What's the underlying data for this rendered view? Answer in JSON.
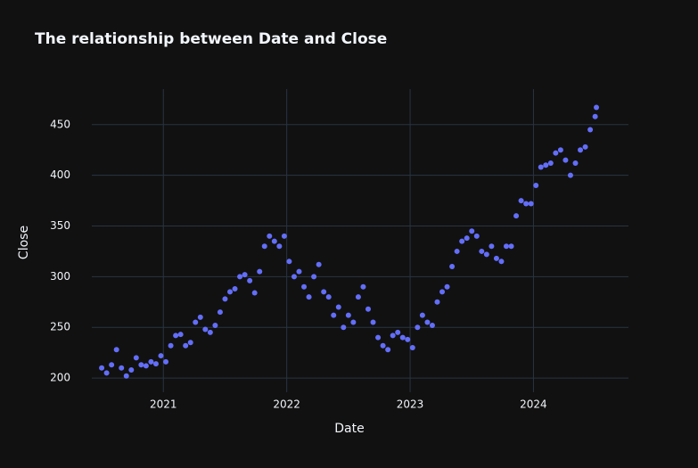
{
  "chart_data": {
    "type": "scatter",
    "title": "The relationship between Date and Close",
    "x_label": "Date",
    "y_label": "Close",
    "x": [
      2020.5,
      2020.54,
      2020.58,
      2020.62,
      2020.66,
      2020.7,
      2020.74,
      2020.78,
      2020.82,
      2020.86,
      2020.9,
      2020.94,
      2020.98,
      2021.02,
      2021.06,
      2021.1,
      2021.14,
      2021.18,
      2021.22,
      2021.26,
      2021.3,
      2021.34,
      2021.38,
      2021.42,
      2021.46,
      2021.5,
      2021.54,
      2021.58,
      2021.62,
      2021.66,
      2021.7,
      2021.74,
      2021.78,
      2021.82,
      2021.86,
      2021.9,
      2021.94,
      2021.98,
      2022.02,
      2022.06,
      2022.1,
      2022.14,
      2022.18,
      2022.22,
      2022.26,
      2022.3,
      2022.34,
      2022.38,
      2022.42,
      2022.46,
      2022.5,
      2022.54,
      2022.58,
      2022.62,
      2022.66,
      2022.7,
      2022.74,
      2022.78,
      2022.82,
      2022.86,
      2022.9,
      2022.94,
      2022.98,
      2023.02,
      2023.06,
      2023.1,
      2023.14,
      2023.18,
      2023.22,
      2023.26,
      2023.3,
      2023.34,
      2023.38,
      2023.42,
      2023.46,
      2023.5,
      2023.54,
      2023.58,
      2023.62,
      2023.66,
      2023.7,
      2023.74,
      2023.78,
      2023.82,
      2023.86,
      2023.9,
      2023.94,
      2023.98,
      2024.02,
      2024.06,
      2024.1,
      2024.14,
      2024.18,
      2024.22,
      2024.26,
      2024.3,
      2024.34,
      2024.38,
      2024.42,
      2024.46,
      2024.5,
      2024.51
    ],
    "series": [
      {
        "name": "Close",
        "color": "#636efa",
        "values": [
          210,
          205,
          213,
          228,
          210,
          202,
          208,
          220,
          213,
          212,
          216,
          214,
          222,
          216,
          232,
          242,
          243,
          232,
          235,
          255,
          260,
          248,
          245,
          252,
          265,
          278,
          285,
          288,
          300,
          302,
          296,
          284,
          305,
          330,
          340,
          335,
          330,
          340,
          315,
          300,
          305,
          290,
          280,
          300,
          312,
          285,
          280,
          262,
          270,
          250,
          262,
          255,
          280,
          290,
          268,
          255,
          240,
          232,
          228,
          242,
          245,
          240,
          238,
          230,
          250,
          262,
          255,
          252,
          275,
          285,
          290,
          310,
          325,
          335,
          338,
          345,
          340,
          325,
          322,
          330,
          318,
          315,
          330,
          330,
          360,
          375,
          372,
          372,
          390,
          408,
          410,
          412,
          422,
          425,
          415,
          400,
          412,
          425,
          428,
          445,
          458,
          467
        ]
      }
    ],
    "xlim": [
      2020.42,
      2024.77
    ],
    "ylim": [
      186,
      485
    ],
    "xticks": [
      2021,
      2022,
      2023,
      2024
    ],
    "yticks": [
      200,
      250,
      300,
      350,
      400,
      450
    ],
    "grid": true
  }
}
